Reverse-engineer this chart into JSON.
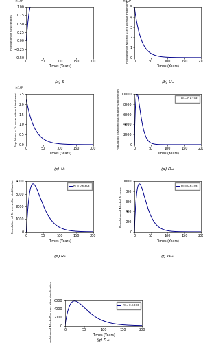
{
  "time_end": 200,
  "subplots": [
    {
      "label": "(a) $S$",
      "ylabel": "Population of Susceptibles",
      "y_scale_exp": 4,
      "ylim_raw": [
        -0.5,
        1.0
      ],
      "scale": 10000,
      "curve": "S",
      "has_legend": false,
      "xticks": [
        0,
        50,
        100,
        150,
        200
      ]
    },
    {
      "label": "(b) $U_a$",
      "ylabel": "Population of Alcohol users without treatment",
      "y_scale_exp": 4,
      "ylim_raw": [
        0,
        5
      ],
      "scale": 10000,
      "curve": "Ua",
      "has_legend": false,
      "xticks": [
        0,
        50,
        100,
        150,
        200
      ]
    },
    {
      "label": "(c) $U_t$",
      "ylabel": "Population of Tu users without treatment",
      "y_scale_exp": 4,
      "ylim_raw": [
        0,
        2.5
      ],
      "scale": 10000,
      "curve": "Ut",
      "has_legend": false,
      "xticks": [
        0,
        50,
        100,
        150,
        200
      ]
    },
    {
      "label": "(d) $R_{at}$",
      "ylabel": "Population of Alcohol users after stabilization",
      "ylim_raw": [
        0,
        10000
      ],
      "scale": 1,
      "curve": "Rat_d",
      "has_legend": true,
      "xticks": [
        0,
        50,
        100,
        150,
        200
      ]
    },
    {
      "label": "(e) $R_t$",
      "ylabel": "Population of Tu users after stabilization",
      "ylim_raw": [
        0,
        4000
      ],
      "scale": 1,
      "curve": "Rt",
      "has_legend": true,
      "xticks": [
        0,
        50,
        100,
        150,
        200
      ]
    },
    {
      "label": "(f) $U_{at}$",
      "ylabel": "Population of Alcohol Tu users",
      "ylim_raw": [
        0,
        1000
      ],
      "scale": 1,
      "curve": "Uat",
      "has_legend": true,
      "xticks": [
        0,
        50,
        100,
        150,
        200
      ]
    },
    {
      "label": "(g) $R_{at}$",
      "ylabel": "Population of AlcoholTu users after stabilization",
      "ylim_raw": [
        0,
        6000
      ],
      "scale": 1,
      "curve": "Rat",
      "has_legend": true,
      "xticks": [
        0,
        50,
        100,
        150,
        200
      ]
    }
  ],
  "legend_text": "$R_0=0.6303$",
  "line_color": "#00008B",
  "xlabel": "Times (Years)"
}
